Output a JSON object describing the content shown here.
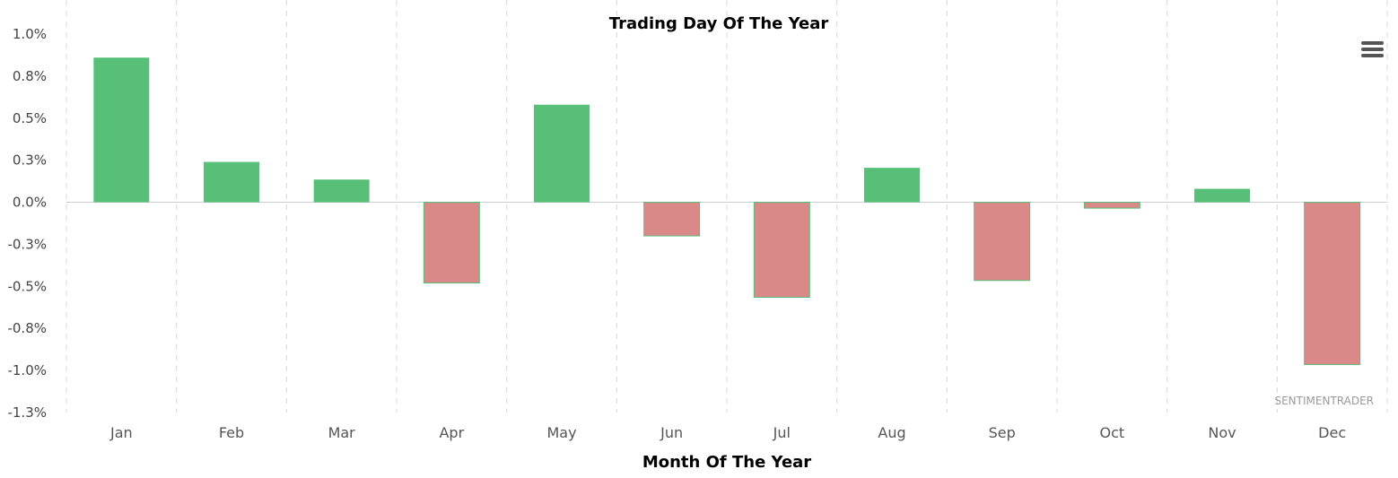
{
  "chart_data": {
    "type": "bar",
    "title": "Trading Day Of The Year",
    "xlabel": "Month Of The Year",
    "ylabel": "",
    "categories": [
      "Jan",
      "Feb",
      "Mar",
      "Apr",
      "May",
      "Jun",
      "Jul",
      "Aug",
      "Sep",
      "Oct",
      "Nov",
      "Dec"
    ],
    "values": [
      0.86,
      0.24,
      0.135,
      -0.48,
      0.58,
      -0.2,
      -0.565,
      0.205,
      -0.465,
      -0.035,
      0.08,
      -0.965
    ],
    "ylim": [
      -1.25,
      1.0
    ],
    "yticks": [
      1.0,
      0.75,
      0.5,
      0.25,
      0.0,
      -0.25,
      -0.5,
      -0.75,
      -1.0,
      -1.25
    ],
    "ytick_labels": [
      "1.0%",
      "0.8%",
      "0.5%",
      "0.3%",
      "0.0%",
      "-0.3%",
      "-0.5%",
      "-0.8%",
      "-1.0%",
      "-1.3%"
    ],
    "positive_color": "#58bf78",
    "negative_color": "#da8989",
    "grid": "vertical dashed",
    "legend": "none"
  },
  "credit": "SENTIMENTRADER",
  "menu_icon": "hamburger-menu-icon"
}
